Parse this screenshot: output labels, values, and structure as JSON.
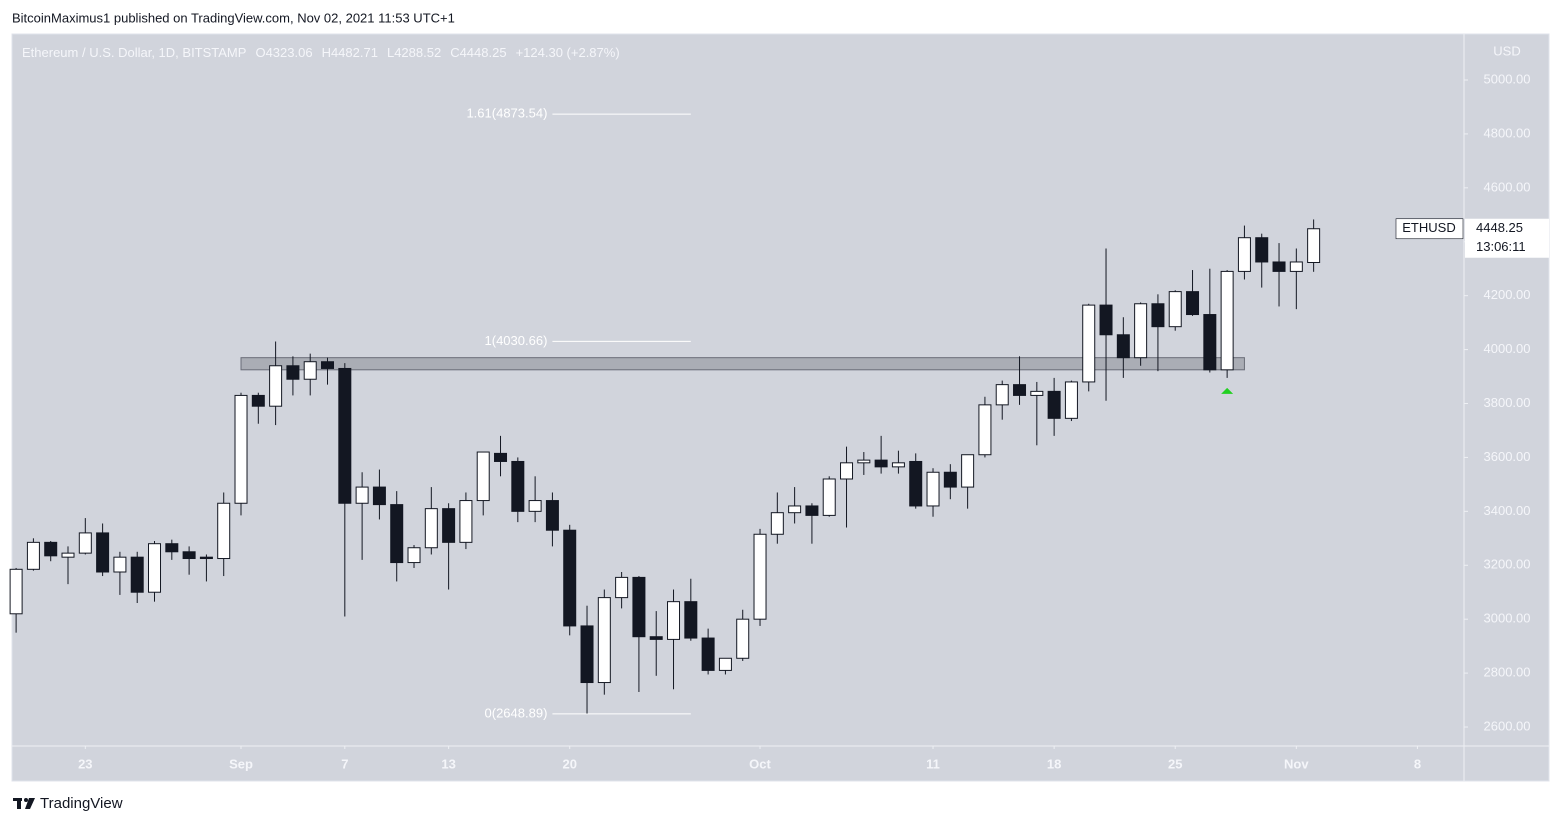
{
  "header": {
    "text": "BitcoinMaximus1 published on TradingView.com, Nov 02, 2021 11:53 UTC+1"
  },
  "footer": {
    "brand": "TradingView"
  },
  "chart_data": {
    "type": "candlestick",
    "symbol_label": "Ethereum / U.S. Dollar, 1D, BITSTAMP",
    "ohlc_letters": [
      "O",
      "H",
      "L",
      "C"
    ],
    "change_label": "+124.30 (+2.87%)",
    "countdown": "13:06:11",
    "currency": "USD",
    "background": "#d1d4dc",
    "grid": false,
    "x": [
      "2021-08-19",
      "2021-08-20",
      "2021-08-21",
      "2021-08-22",
      "2021-08-23",
      "2021-08-24",
      "2021-08-25",
      "2021-08-26",
      "2021-08-27",
      "2021-08-28",
      "2021-08-29",
      "2021-08-30",
      "2021-08-31",
      "2021-09-01",
      "2021-09-02",
      "2021-09-03",
      "2021-09-04",
      "2021-09-05",
      "2021-09-06",
      "2021-09-07",
      "2021-09-08",
      "2021-09-09",
      "2021-09-10",
      "2021-09-11",
      "2021-09-12",
      "2021-09-13",
      "2021-09-14",
      "2021-09-15",
      "2021-09-16",
      "2021-09-17",
      "2021-09-18",
      "2021-09-19",
      "2021-09-20",
      "2021-09-21",
      "2021-09-22",
      "2021-09-23",
      "2021-09-24",
      "2021-09-25",
      "2021-09-26",
      "2021-09-27",
      "2021-09-28",
      "2021-09-29",
      "2021-09-30",
      "2021-10-01",
      "2021-10-02",
      "2021-10-03",
      "2021-10-04",
      "2021-10-05",
      "2021-10-06",
      "2021-10-07",
      "2021-10-08",
      "2021-10-09",
      "2021-10-10",
      "2021-10-11",
      "2021-10-12",
      "2021-10-13",
      "2021-10-14",
      "2021-10-15",
      "2021-10-16",
      "2021-10-17",
      "2021-10-18",
      "2021-10-19",
      "2021-10-20",
      "2021-10-21",
      "2021-10-22",
      "2021-10-23",
      "2021-10-24",
      "2021-10-25",
      "2021-10-26",
      "2021-10-27",
      "2021-10-28",
      "2021-10-29",
      "2021-10-30",
      "2021-10-31",
      "2021-11-01",
      "2021-11-02"
    ],
    "series": [
      {
        "name": "ETHUSD",
        "up_color": "#ffffff",
        "down_color": "#131722",
        "border_color": "#131722",
        "open": [
          3020,
          3185,
          3285,
          3230,
          3245,
          3320,
          3175,
          3230,
          3100,
          3280,
          3250,
          3230,
          3225,
          3430,
          3830,
          3790,
          3940,
          3890,
          3955,
          3930,
          3430,
          3490,
          3425,
          3210,
          3265,
          3410,
          3285,
          3440,
          3615,
          3585,
          3400,
          3440,
          3330,
          2975,
          2765,
          3080,
          3155,
          2935,
          2925,
          3065,
          2930,
          2810,
          2855,
          3000,
          3315,
          3395,
          3420,
          3385,
          3520,
          3580,
          3590,
          3565,
          3585,
          3420,
          3545,
          3490,
          3610,
          3795,
          3870,
          3830,
          3845,
          3745,
          3880,
          4165,
          4055,
          3970,
          4170,
          4085,
          4215,
          4130,
          3925,
          4290,
          4415,
          4325,
          4290,
          4323.06
        ],
        "high": [
          3190,
          3300,
          3290,
          3270,
          3375,
          3355,
          3250,
          3250,
          3290,
          3295,
          3270,
          3240,
          3470,
          3840,
          3840,
          4030,
          3975,
          3985,
          3970,
          3950,
          3545,
          3555,
          3475,
          3275,
          3490,
          3430,
          3470,
          3620,
          3680,
          3600,
          3530,
          3470,
          3350,
          3050,
          3110,
          3175,
          3160,
          3030,
          3110,
          3150,
          2965,
          2850,
          3035,
          3335,
          3470,
          3490,
          3430,
          3530,
          3640,
          3620,
          3680,
          3625,
          3615,
          3560,
          3575,
          3610,
          3825,
          3885,
          3975,
          3880,
          3895,
          3885,
          4170,
          4375,
          4120,
          4175,
          4205,
          4220,
          4295,
          4300,
          4295,
          4460,
          4430,
          4395,
          4375,
          4482.71
        ],
        "low": [
          2950,
          3180,
          3215,
          3130,
          3240,
          3160,
          3090,
          3060,
          3065,
          3220,
          3165,
          3140,
          3160,
          3385,
          3725,
          3720,
          3830,
          3830,
          3870,
          3010,
          3220,
          3370,
          3140,
          3190,
          3240,
          3110,
          3260,
          3385,
          3530,
          3360,
          3360,
          3270,
          2940,
          2650,
          2720,
          3040,
          2730,
          2790,
          2740,
          2920,
          2795,
          2795,
          2845,
          2975,
          3280,
          3355,
          3280,
          3380,
          3340,
          3535,
          3540,
          3540,
          3410,
          3380,
          3445,
          3410,
          3600,
          3740,
          3795,
          3645,
          3680,
          3735,
          3845,
          3810,
          3895,
          3940,
          3920,
          4070,
          4125,
          3915,
          3895,
          4260,
          4230,
          4160,
          4150,
          4288.52
        ],
        "close": [
          3185,
          3285,
          3235,
          3245,
          3320,
          3175,
          3230,
          3100,
          3280,
          3250,
          3225,
          3225,
          3430,
          3830,
          3790,
          3940,
          3890,
          3955,
          3930,
          3430,
          3490,
          3425,
          3210,
          3265,
          3410,
          3285,
          3440,
          3620,
          3585,
          3400,
          3440,
          3330,
          2975,
          2765,
          3080,
          3155,
          2935,
          2925,
          3065,
          2930,
          2810,
          2855,
          3000,
          3315,
          3395,
          3420,
          3385,
          3520,
          3580,
          3590,
          3565,
          3580,
          3420,
          3545,
          3490,
          3610,
          3795,
          3870,
          3830,
          3845,
          3745,
          3880,
          4165,
          4055,
          3970,
          4170,
          4085,
          4215,
          4130,
          3925,
          4290,
          4415,
          4325,
          4290,
          4325,
          4448.25
        ]
      }
    ],
    "xlim": [
      "2021-08-18T18:18:00Z",
      "2021-11-10T16:36:00Z"
    ],
    "xticks": [
      {
        "value": "2021-08-23",
        "label": "23"
      },
      {
        "value": "2021-09-01",
        "label": "Sep"
      },
      {
        "value": "2021-09-07",
        "label": "7"
      },
      {
        "value": "2021-09-13",
        "label": "13"
      },
      {
        "value": "2021-09-20",
        "label": "20"
      },
      {
        "value": "2021-10-01",
        "label": "Oct"
      },
      {
        "value": "2021-10-11",
        "label": "11"
      },
      {
        "value": "2021-10-18",
        "label": "18"
      },
      {
        "value": "2021-10-25",
        "label": "25"
      },
      {
        "value": "2021-11-01",
        "label": "Nov"
      },
      {
        "value": "2021-11-08",
        "label": "8"
      }
    ],
    "ylim": [
      2529.6,
      5170.6
    ],
    "yticks": [
      {
        "value": 2600,
        "label": "2600.00"
      },
      {
        "value": 2800,
        "label": "2800.00"
      },
      {
        "value": 3000,
        "label": "3000.00"
      },
      {
        "value": 3200,
        "label": "3200.00"
      },
      {
        "value": 3400,
        "label": "3400.00"
      },
      {
        "value": 3600,
        "label": "3600.00"
      },
      {
        "value": 3800,
        "label": "3800.00"
      },
      {
        "value": 4000,
        "label": "4000.00"
      },
      {
        "value": 4200,
        "label": "4200.00"
      },
      {
        "value": 4400,
        "label": "4400.00"
      },
      {
        "value": 4600,
        "label": "4600.00"
      },
      {
        "value": 4800,
        "label": "4800.00"
      },
      {
        "value": 5000,
        "label": "5000.00"
      }
    ],
    "fib_levels": [
      {
        "value": 4873.54,
        "label": "1.61(4873.54)"
      },
      {
        "value": 4030.66,
        "label": "1(4030.66)"
      },
      {
        "value": 2648.89,
        "label": "0(2648.89)"
      }
    ],
    "fib_x": [
      "2021-09-19",
      "2021-09-27"
    ],
    "zone": {
      "range": [
        3925,
        3970
      ],
      "x": [
        "2021-09-01",
        "2021-10-29"
      ],
      "color": "#8a8d96"
    },
    "markers": [
      {
        "x": "2021-10-28",
        "shape": "triangle-up",
        "color": "#22d022"
      }
    ]
  }
}
